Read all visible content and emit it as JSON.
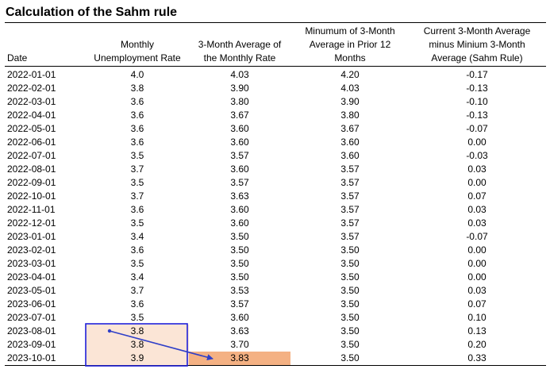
{
  "title": "Calculation of the Sahm rule",
  "headers": {
    "date": "Date",
    "unemployment": [
      "Monthly",
      "Unemployment Rate"
    ],
    "avg3": [
      "3-Month Average of",
      "the Monthly Rate"
    ],
    "min3": [
      "Minumum of 3-Month",
      "Average in Prior 12",
      "Months"
    ],
    "sahm": [
      "Current 3-Month Average",
      "minus Minium 3-Month",
      "Average (Sahm Rule)"
    ]
  },
  "rows": [
    {
      "date": "2022-01-01",
      "unemployment": "4.0",
      "avg3": "4.03",
      "min3": "4.20",
      "sahm": "-0.17"
    },
    {
      "date": "2022-02-01",
      "unemployment": "3.8",
      "avg3": "3.90",
      "min3": "4.03",
      "sahm": "-0.13"
    },
    {
      "date": "2022-03-01",
      "unemployment": "3.6",
      "avg3": "3.80",
      "min3": "3.90",
      "sahm": "-0.10"
    },
    {
      "date": "2022-04-01",
      "unemployment": "3.6",
      "avg3": "3.67",
      "min3": "3.80",
      "sahm": "-0.13"
    },
    {
      "date": "2022-05-01",
      "unemployment": "3.6",
      "avg3": "3.60",
      "min3": "3.67",
      "sahm": "-0.07"
    },
    {
      "date": "2022-06-01",
      "unemployment": "3.6",
      "avg3": "3.60",
      "min3": "3.60",
      "sahm": "0.00"
    },
    {
      "date": "2022-07-01",
      "unemployment": "3.5",
      "avg3": "3.57",
      "min3": "3.60",
      "sahm": "-0.03"
    },
    {
      "date": "2022-08-01",
      "unemployment": "3.7",
      "avg3": "3.60",
      "min3": "3.57",
      "sahm": "0.03"
    },
    {
      "date": "2022-09-01",
      "unemployment": "3.5",
      "avg3": "3.57",
      "min3": "3.57",
      "sahm": "0.00"
    },
    {
      "date": "2022-10-01",
      "unemployment": "3.7",
      "avg3": "3.63",
      "min3": "3.57",
      "sahm": "0.07"
    },
    {
      "date": "2022-11-01",
      "unemployment": "3.6",
      "avg3": "3.60",
      "min3": "3.57",
      "sahm": "0.03"
    },
    {
      "date": "2022-12-01",
      "unemployment": "3.5",
      "avg3": "3.60",
      "min3": "3.57",
      "sahm": "0.03"
    },
    {
      "date": "2023-01-01",
      "unemployment": "3.4",
      "avg3": "3.50",
      "min3": "3.57",
      "sahm": "-0.07"
    },
    {
      "date": "2023-02-01",
      "unemployment": "3.6",
      "avg3": "3.50",
      "min3": "3.50",
      "sahm": "0.00"
    },
    {
      "date": "2023-03-01",
      "unemployment": "3.5",
      "avg3": "3.50",
      "min3": "3.50",
      "sahm": "0.00"
    },
    {
      "date": "2023-04-01",
      "unemployment": "3.4",
      "avg3": "3.50",
      "min3": "3.50",
      "sahm": "0.00"
    },
    {
      "date": "2023-05-01",
      "unemployment": "3.7",
      "avg3": "3.53",
      "min3": "3.50",
      "sahm": "0.03"
    },
    {
      "date": "2023-06-01",
      "unemployment": "3.6",
      "avg3": "3.57",
      "min3": "3.50",
      "sahm": "0.07"
    },
    {
      "date": "2023-07-01",
      "unemployment": "3.5",
      "avg3": "3.60",
      "min3": "3.50",
      "sahm": "0.10"
    },
    {
      "date": "2023-08-01",
      "unemployment": "3.8",
      "avg3": "3.63",
      "min3": "3.50",
      "sahm": "0.13"
    },
    {
      "date": "2023-09-01",
      "unemployment": "3.8",
      "avg3": "3.70",
      "min3": "3.50",
      "sahm": "0.20"
    },
    {
      "date": "2023-10-01",
      "unemployment": "3.9",
      "avg3": "3.83",
      "min3": "3.50",
      "sahm": "0.33"
    }
  ],
  "highlight": {
    "unemployment_rows": [
      "2023-08-01",
      "2023-09-01",
      "2023-10-01"
    ],
    "avg3_row": "2023-10-01",
    "unemployment_fill": "#fbe5d6",
    "avg3_fill": "#f4b183",
    "box_color": "#1f1fd8",
    "arrow_color": "#2f3fc8"
  }
}
